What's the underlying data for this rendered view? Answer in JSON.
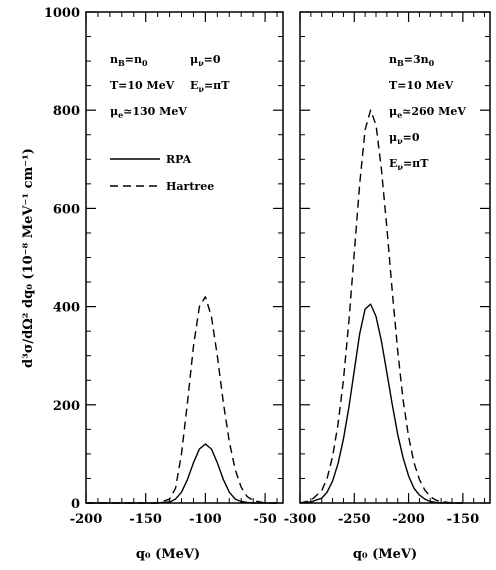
{
  "chart_data": [
    {
      "type": "line",
      "panel": "left",
      "xlabel": "q₀ (MeV)",
      "ylabel": "d³σ/dΩ² dq₀ (10⁻⁸ MeV⁻¹ cm⁻¹)",
      "xlim": [
        -200,
        -35
      ],
      "ylim": [
        0,
        1000
      ],
      "xticks": [
        "-200",
        "-150",
        "-100",
        "-50"
      ],
      "xtick_values": [
        -200,
        -150,
        -100,
        -50
      ],
      "yticks": [
        "0",
        "200",
        "400",
        "600",
        "800",
        "1000"
      ],
      "ytick_values": [
        0,
        200,
        400,
        600,
        800,
        1000
      ],
      "legend": {
        "placement": "upper-left",
        "entries": [
          {
            "label": "RPA",
            "style": "solid"
          },
          {
            "label": "Hartree",
            "style": "dashed"
          }
        ]
      },
      "annotations": [
        {
          "main": "n",
          "sub": "B",
          "tail": "=n",
          "sub2": "0"
        },
        {
          "main": "μ",
          "sub": "ν",
          "tail": "=0"
        },
        {
          "main": "T=10 MeV"
        },
        {
          "main": "E",
          "sub": "ν",
          "tail": "=πT"
        },
        {
          "main": "μ",
          "sub": "e",
          "tail": "≃130 MeV"
        }
      ],
      "series": [
        {
          "name": "RPA",
          "style": "solid",
          "x": [
            -200,
            -140,
            -130,
            -125,
            -120,
            -115,
            -110,
            -105,
            -100,
            -95,
            -90,
            -85,
            -80,
            -75,
            -70,
            -65,
            -60,
            -50,
            -40
          ],
          "y": [
            0,
            0,
            2,
            8,
            22,
            48,
            82,
            110,
            120,
            110,
            82,
            48,
            22,
            8,
            3,
            1,
            0,
            0,
            0
          ]
        },
        {
          "name": "Hartree",
          "style": "dashed",
          "x": [
            -200,
            -140,
            -130,
            -125,
            -120,
            -115,
            -110,
            -105,
            -100,
            -95,
            -90,
            -85,
            -80,
            -75,
            -70,
            -65,
            -60,
            -50,
            -40
          ],
          "y": [
            0,
            0,
            8,
            30,
            100,
            205,
            320,
            400,
            420,
            380,
            300,
            205,
            125,
            68,
            32,
            13,
            5,
            0,
            0
          ]
        }
      ]
    },
    {
      "type": "line",
      "panel": "right",
      "xlabel": "q₀ (MeV)",
      "xlim": [
        -300,
        -125
      ],
      "ylim": [
        0,
        1000
      ],
      "xticks": [
        "-300",
        "-250",
        "-200",
        "-150"
      ],
      "xtick_values": [
        -300,
        -250,
        -200,
        -150
      ],
      "annotations": [
        {
          "main": "n",
          "sub": "B",
          "tail": "=3n",
          "sub2": "0"
        },
        {
          "main": "T=10 MeV"
        },
        {
          "main": "μ",
          "sub": "e",
          "tail": "≃260 MeV"
        },
        {
          "main": "μ",
          "sub": "ν",
          "tail": "=0"
        },
        {
          "main": "E",
          "sub": "ν",
          "tail": "=πT"
        }
      ],
      "series": [
        {
          "name": "RPA",
          "style": "solid",
          "x": [
            -300,
            -290,
            -280,
            -275,
            -270,
            -265,
            -260,
            -255,
            -250,
            -245,
            -240,
            -235,
            -230,
            -225,
            -220,
            -215,
            -210,
            -205,
            -200,
            -195,
            -190,
            -185,
            -180,
            -175,
            -170,
            -160,
            -150
          ],
          "y": [
            0,
            2,
            10,
            22,
            45,
            80,
            130,
            195,
            270,
            345,
            395,
            405,
            380,
            330,
            265,
            200,
            140,
            92,
            55,
            30,
            16,
            8,
            3,
            1,
            0,
            0,
            0
          ]
        },
        {
          "name": "Hartree",
          "style": "dashed",
          "x": [
            -300,
            -290,
            -280,
            -275,
            -270,
            -265,
            -260,
            -255,
            -250,
            -245,
            -240,
            -235,
            -230,
            -225,
            -220,
            -215,
            -210,
            -205,
            -200,
            -195,
            -190,
            -185,
            -180,
            -175,
            -170,
            -160,
            -150
          ],
          "y": [
            0,
            5,
            25,
            50,
            95,
            160,
            250,
            370,
            510,
            650,
            760,
            800,
            770,
            680,
            560,
            430,
            310,
            210,
            135,
            82,
            48,
            26,
            13,
            6,
            3,
            0,
            0
          ]
        }
      ]
    }
  ]
}
